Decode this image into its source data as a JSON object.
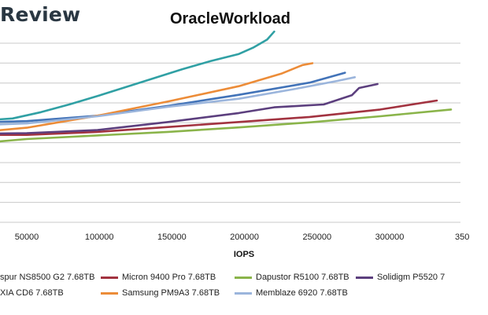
{
  "logo": {
    "text": "Review"
  },
  "chart_data": {
    "type": "line",
    "title": "OracleWorkload",
    "xlabel": "IOPS",
    "ylabel": "",
    "xlim": [
      25000,
      350000
    ],
    "ylim": [
      0,
      10
    ],
    "grid": true,
    "legend_position": "bottom",
    "x_ticks": [
      "50000",
      "100000",
      "150000",
      "200000",
      "250000",
      "300000",
      "350"
    ],
    "series": [
      {
        "name": "spur NS8500 G2 7.68TB",
        "color": "#30a0a4",
        "points": [
          [
            25000,
            5.72
          ],
          [
            40000,
            5.8
          ],
          [
            60000,
            6.15
          ],
          [
            80000,
            6.58
          ],
          [
            100000,
            7.05
          ],
          [
            120000,
            7.55
          ],
          [
            140000,
            8.05
          ],
          [
            160000,
            8.55
          ],
          [
            180000,
            9.0
          ],
          [
            200000,
            9.4
          ],
          [
            210000,
            9.75
          ],
          [
            220000,
            10.2
          ],
          [
            225000,
            10.65
          ]
        ]
      },
      {
        "name": "Micron 9400 Pro 7.68TB",
        "color": "#a23340",
        "points": [
          [
            25000,
            4.88
          ],
          [
            50000,
            4.88
          ],
          [
            100000,
            5.05
          ],
          [
            150000,
            5.32
          ],
          [
            200000,
            5.6
          ],
          [
            250000,
            5.88
          ],
          [
            300000,
            6.3
          ],
          [
            340000,
            6.8
          ]
        ]
      },
      {
        "name": "Dapustor R5100 7.68TB",
        "color": "#8ab44a",
        "points": [
          [
            28000,
            4.5
          ],
          [
            50000,
            4.65
          ],
          [
            100000,
            4.85
          ],
          [
            150000,
            5.05
          ],
          [
            200000,
            5.3
          ],
          [
            250000,
            5.58
          ],
          [
            300000,
            5.92
          ],
          [
            350000,
            6.3
          ]
        ]
      },
      {
        "name": "Solidigm P5520 7",
        "color": "#5c3f7e",
        "points": [
          [
            25000,
            4.95
          ],
          [
            50000,
            4.98
          ],
          [
            100000,
            5.15
          ],
          [
            150000,
            5.6
          ],
          [
            200000,
            6.1
          ],
          [
            225000,
            6.42
          ],
          [
            260000,
            6.58
          ],
          [
            280000,
            7.1
          ],
          [
            285000,
            7.5
          ],
          [
            298000,
            7.72
          ]
        ]
      },
      {
        "name": "XIA CD6 7.68TB",
        "color": "#4273b8",
        "points": [
          [
            25000,
            5.6
          ],
          [
            50000,
            5.65
          ],
          [
            100000,
            5.95
          ],
          [
            150000,
            6.5
          ],
          [
            200000,
            7.12
          ],
          [
            250000,
            7.8
          ],
          [
            275000,
            8.35
          ]
        ]
      },
      {
        "name": "Samsung PM9A3 7.68TB",
        "color": "#ec8c38",
        "points": [
          [
            25000,
            5.1
          ],
          [
            50000,
            5.28
          ],
          [
            100000,
            5.95
          ],
          [
            150000,
            6.75
          ],
          [
            200000,
            7.6
          ],
          [
            230000,
            8.3
          ],
          [
            245000,
            8.78
          ],
          [
            252000,
            8.88
          ]
        ]
      },
      {
        "name": "Memblaze 6920 7.68TB",
        "color": "#9bb5dc",
        "points": [
          [
            25000,
            5.45
          ],
          [
            50000,
            5.52
          ],
          [
            100000,
            5.92
          ],
          [
            150000,
            6.45
          ],
          [
            200000,
            6.9
          ],
          [
            240000,
            7.45
          ],
          [
            270000,
            7.9
          ],
          [
            282000,
            8.1
          ]
        ]
      }
    ]
  }
}
